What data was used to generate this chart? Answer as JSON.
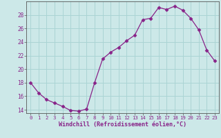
{
  "x": [
    0,
    1,
    2,
    3,
    4,
    5,
    6,
    7,
    8,
    9,
    10,
    11,
    12,
    13,
    14,
    15,
    16,
    17,
    18,
    19,
    20,
    21,
    22,
    23
  ],
  "y": [
    18,
    16.5,
    15.5,
    15,
    14.5,
    13.9,
    13.8,
    14.1,
    18.0,
    21.5,
    22.5,
    23.2,
    24.2,
    25.0,
    27.3,
    27.5,
    29.1,
    28.8,
    29.3,
    28.7,
    27.5,
    25.8,
    22.8,
    21.2
  ],
  "line_color": "#882288",
  "marker": "D",
  "marker_size": 2.5,
  "bg_color": "#cce8e8",
  "grid_color": "#aad4d4",
  "xlabel": "Windchill (Refroidissement éolien,°C)",
  "ylabel_ticks": [
    14,
    16,
    18,
    20,
    22,
    24,
    26,
    28
  ],
  "xlim": [
    -0.5,
    23.5
  ],
  "ylim": [
    13.5,
    30.0
  ],
  "xticks": [
    0,
    1,
    2,
    3,
    4,
    5,
    6,
    7,
    8,
    9,
    10,
    11,
    12,
    13,
    14,
    15,
    16,
    17,
    18,
    19,
    20,
    21,
    22,
    23
  ],
  "axis_color": "#882288",
  "spine_color": "#555555",
  "label_fontsize": 5.5,
  "tick_fontsize": 5.2,
  "xlabel_fontsize": 6.0
}
